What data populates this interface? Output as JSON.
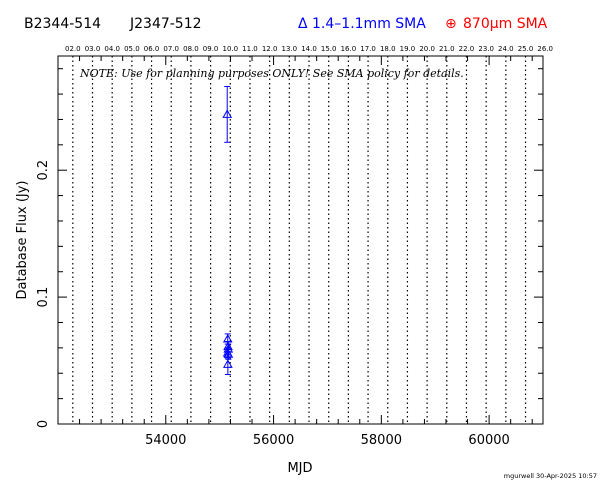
{
  "header": {
    "source_name": "B2344-514",
    "alt_name": "J2347-512",
    "legend_13mm": "Δ 1.4–1.1mm SMA",
    "legend_870_symbol": "⊕",
    "legend_870_text": "870μm SMA",
    "color_13mm": "#0000ff",
    "color_870": "#ff0000"
  },
  "note": "NOTE: Use for planning purposes ONLY!  See SMA policy for details.",
  "credit": "mgurwell 30-Apr-2025 10:57",
  "chart_data": {
    "type": "scatter",
    "xlabel": "MJD",
    "ylabel": "Database Flux (Jy)",
    "xlim": [
      52000,
      61000
    ],
    "ylim": [
      0,
      0.29
    ],
    "x_ticks": [
      54000,
      56000,
      58000,
      60000
    ],
    "y_ticks": [
      {
        "value": 0,
        "label": "0"
      },
      {
        "value": 0.1,
        "label": "0.1"
      },
      {
        "value": 0.2,
        "label": "0.2"
      }
    ],
    "top_axis_labels": [
      "02.0",
      "03.0",
      "04.0",
      "05.0",
      "06.0",
      "07.0",
      "08.0",
      "09.0",
      "10.0",
      "11.0",
      "12.0",
      "13.0",
      "14.0",
      "15.0",
      "16.0",
      "17.0",
      "18.0",
      "19.0",
      "20.0",
      "21.0",
      "22.0",
      "23.0",
      "24.0",
      "25.0",
      "26.0"
    ],
    "top_axis_first_mjd": 52275,
    "top_axis_step_mjd": 365.25,
    "grid": "vertical dotted lines at each year",
    "series": [
      {
        "name": "1.4–1.1mm SMA",
        "color": "#0000ff",
        "marker": "triangle",
        "points": [
          {
            "x": 55140,
            "y": 0.244,
            "err": 0.022
          },
          {
            "x": 55150,
            "y": 0.067,
            "err": 0.004
          },
          {
            "x": 55155,
            "y": 0.061,
            "err": 0.004
          },
          {
            "x": 55160,
            "y": 0.059,
            "err": 0.004
          },
          {
            "x": 55148,
            "y": 0.056,
            "err": 0.004
          },
          {
            "x": 55162,
            "y": 0.055,
            "err": 0.004
          },
          {
            "x": 55152,
            "y": 0.047,
            "err": 0.008
          }
        ]
      },
      {
        "name": "870μm SMA",
        "color": "#ff0000",
        "marker": "circle-plus",
        "points": []
      }
    ]
  }
}
